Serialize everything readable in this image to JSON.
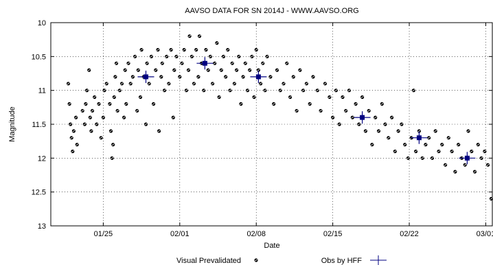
{
  "chart_data": {
    "type": "scatter",
    "title": "AAVSO DATA FOR SN 2014J - WWW.AAVSO.ORG",
    "xlabel": "Date",
    "ylabel": "Magnitude",
    "x_ticks": [
      {
        "label": "01/25",
        "day": 25
      },
      {
        "label": "02/01",
        "day": 32
      },
      {
        "label": "02/08",
        "day": 39
      },
      {
        "label": "02/15",
        "day": 46
      },
      {
        "label": "02/22",
        "day": 53
      },
      {
        "label": "03/01",
        "day": 60
      }
    ],
    "y_ticks": [
      "10",
      "10.5",
      "11",
      "11.5",
      "12",
      "12.5",
      "13"
    ],
    "xlim": [
      20.2,
      60.6
    ],
    "ylim": [
      13,
      10
    ],
    "y_inverted": true,
    "grid": true,
    "legend": {
      "placement": "bottom"
    },
    "series": [
      {
        "name": "Visual Prevalidated",
        "marker": "dot",
        "color": "#000000",
        "points": [
          [
            21.8,
            10.9
          ],
          [
            21.9,
            11.2
          ],
          [
            22.0,
            11.5
          ],
          [
            22.1,
            11.7
          ],
          [
            22.2,
            11.9
          ],
          [
            22.3,
            11.6
          ],
          [
            22.5,
            11.4
          ],
          [
            22.6,
            11.8
          ],
          [
            23.1,
            11.3
          ],
          [
            23.3,
            11.5
          ],
          [
            23.4,
            11.2
          ],
          [
            23.5,
            11.0
          ],
          [
            23.7,
            10.7
          ],
          [
            23.8,
            11.4
          ],
          [
            23.9,
            11.6
          ],
          [
            24.0,
            11.3
          ],
          [
            24.2,
            11.1
          ],
          [
            24.4,
            11.5
          ],
          [
            24.6,
            11.2
          ],
          [
            24.8,
            11.7
          ],
          [
            25.0,
            11.4
          ],
          [
            25.1,
            11.0
          ],
          [
            25.3,
            10.9
          ],
          [
            25.6,
            11.2
          ],
          [
            25.7,
            11.6
          ],
          [
            25.8,
            12.0
          ],
          [
            25.9,
            11.8
          ],
          [
            26.0,
            11.1
          ],
          [
            26.1,
            10.8
          ],
          [
            26.2,
            10.6
          ],
          [
            26.3,
            11.3
          ],
          [
            26.5,
            11.0
          ],
          [
            26.7,
            10.9
          ],
          [
            26.9,
            11.4
          ],
          [
            27.0,
            10.7
          ],
          [
            27.1,
            11.2
          ],
          [
            27.3,
            10.6
          ],
          [
            27.5,
            10.9
          ],
          [
            27.7,
            10.8
          ],
          [
            27.9,
            10.5
          ],
          [
            28.1,
            11.3
          ],
          [
            28.2,
            10.7
          ],
          [
            28.4,
            11.1
          ],
          [
            28.5,
            10.4
          ],
          [
            28.7,
            10.8
          ],
          [
            28.9,
            11.5
          ],
          [
            29.0,
            10.6
          ],
          [
            29.2,
            10.9
          ],
          [
            29.4,
            10.5
          ],
          [
            29.6,
            11.2
          ],
          [
            29.8,
            10.7
          ],
          [
            30.0,
            10.4
          ],
          [
            30.1,
            11.6
          ],
          [
            30.3,
            10.8
          ],
          [
            30.4,
            10.6
          ],
          [
            30.6,
            11.0
          ],
          [
            30.8,
            10.5
          ],
          [
            31.0,
            10.9
          ],
          [
            31.2,
            10.4
          ],
          [
            31.4,
            11.4
          ],
          [
            31.5,
            10.7
          ],
          [
            31.7,
            10.5
          ],
          [
            32.0,
            10.8
          ],
          [
            32.2,
            10.6
          ],
          [
            32.4,
            10.4
          ],
          [
            32.6,
            11.0
          ],
          [
            32.8,
            10.7
          ],
          [
            32.9,
            10.2
          ],
          [
            33.1,
            10.5
          ],
          [
            33.3,
            10.9
          ],
          [
            33.5,
            10.4
          ],
          [
            33.7,
            10.8
          ],
          [
            33.8,
            10.2
          ],
          [
            34.0,
            10.6
          ],
          [
            34.2,
            11.0
          ],
          [
            34.4,
            10.4
          ],
          [
            34.6,
            10.7
          ],
          [
            34.8,
            10.5
          ],
          [
            35.0,
            10.9
          ],
          [
            35.2,
            10.6
          ],
          [
            35.4,
            10.3
          ],
          [
            35.6,
            11.1
          ],
          [
            35.8,
            10.7
          ],
          [
            36.0,
            10.5
          ],
          [
            36.2,
            10.8
          ],
          [
            36.4,
            10.4
          ],
          [
            36.6,
            11.0
          ],
          [
            36.8,
            10.6
          ],
          [
            37.0,
            10.9
          ],
          [
            37.2,
            10.7
          ],
          [
            37.4,
            10.5
          ],
          [
            37.6,
            11.2
          ],
          [
            37.8,
            10.8
          ],
          [
            38.0,
            10.6
          ],
          [
            38.2,
            11.0
          ],
          [
            38.4,
            10.7
          ],
          [
            38.6,
            10.5
          ],
          [
            38.8,
            11.1
          ],
          [
            39.0,
            10.4
          ],
          [
            39.2,
            10.7
          ],
          [
            39.4,
            10.9
          ],
          [
            39.6,
            10.6
          ],
          [
            39.8,
            11.0
          ],
          [
            40.0,
            10.5
          ],
          [
            40.3,
            10.8
          ],
          [
            40.6,
            11.2
          ],
          [
            40.9,
            10.7
          ],
          [
            41.2,
            11.0
          ],
          [
            41.5,
            10.9
          ],
          [
            41.8,
            10.6
          ],
          [
            42.1,
            11.1
          ],
          [
            42.4,
            10.8
          ],
          [
            42.7,
            11.3
          ],
          [
            43.0,
            10.7
          ],
          [
            43.3,
            11.0
          ],
          [
            43.6,
            10.9
          ],
          [
            43.9,
            11.2
          ],
          [
            44.2,
            10.8
          ],
          [
            44.6,
            11.0
          ],
          [
            44.9,
            11.3
          ],
          [
            45.3,
            10.9
          ],
          [
            45.7,
            11.1
          ],
          [
            46.0,
            11.4
          ],
          [
            46.3,
            11.0
          ],
          [
            46.6,
            11.5
          ],
          [
            46.9,
            11.1
          ],
          [
            47.2,
            11.3
          ],
          [
            47.5,
            11.0
          ],
          [
            47.8,
            11.4
          ],
          [
            48.1,
            11.2
          ],
          [
            48.4,
            11.5
          ],
          [
            48.7,
            11.1
          ],
          [
            49.0,
            11.6
          ],
          [
            49.3,
            11.3
          ],
          [
            49.6,
            11.8
          ],
          [
            49.9,
            11.4
          ],
          [
            50.2,
            11.6
          ],
          [
            50.5,
            11.2
          ],
          [
            50.8,
            11.5
          ],
          [
            51.1,
            11.7
          ],
          [
            51.4,
            11.4
          ],
          [
            51.7,
            11.9
          ],
          [
            52.0,
            11.6
          ],
          [
            52.3,
            11.5
          ],
          [
            52.6,
            11.8
          ],
          [
            52.9,
            12.0
          ],
          [
            53.2,
            11.7
          ],
          [
            53.4,
            11.0
          ],
          [
            53.6,
            11.9
          ],
          [
            53.9,
            11.6
          ],
          [
            54.2,
            12.0
          ],
          [
            54.5,
            11.8
          ],
          [
            54.8,
            11.7
          ],
          [
            55.1,
            12.0
          ],
          [
            55.4,
            11.6
          ],
          [
            55.7,
            11.9
          ],
          [
            56.0,
            11.8
          ],
          [
            56.3,
            12.1
          ],
          [
            56.6,
            11.7
          ],
          [
            56.9,
            11.9
          ],
          [
            57.2,
            12.2
          ],
          [
            57.5,
            11.8
          ],
          [
            57.8,
            12.0
          ],
          [
            58.1,
            12.1
          ],
          [
            58.4,
            11.6
          ],
          [
            58.7,
            11.9
          ],
          [
            59.0,
            12.2
          ],
          [
            59.3,
            11.8
          ],
          [
            59.6,
            12.0
          ],
          [
            59.9,
            11.9
          ],
          [
            60.2,
            12.1
          ],
          [
            60.5,
            12.6
          ]
        ]
      },
      {
        "name": "Obs by HFF",
        "marker": "cross",
        "color": "#000080",
        "points": [
          [
            28.9,
            10.8
          ],
          [
            34.3,
            10.6
          ],
          [
            39.2,
            10.8
          ],
          [
            48.7,
            11.4
          ],
          [
            53.9,
            11.7
          ],
          [
            58.3,
            12.0
          ]
        ]
      }
    ]
  }
}
